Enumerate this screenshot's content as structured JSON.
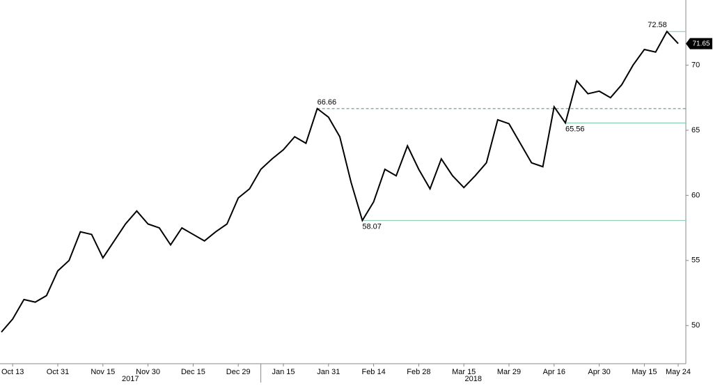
{
  "chart_data": {
    "type": "line",
    "categories": [
      null,
      "Oct 13",
      null,
      null,
      null,
      "Oct 31",
      null,
      null,
      null,
      "Nov 15",
      null,
      null,
      null,
      "Nov 30",
      null,
      null,
      null,
      "Dec 15",
      null,
      null,
      null,
      "Dec 29",
      null,
      null,
      null,
      "Jan 15",
      null,
      null,
      null,
      "Jan 31",
      null,
      null,
      null,
      "Feb 14",
      null,
      null,
      null,
      "Feb 28",
      null,
      null,
      null,
      "Mar 15",
      null,
      null,
      null,
      "Mar 29",
      null,
      null,
      null,
      "Apr 16",
      null,
      null,
      null,
      "Apr 30",
      null,
      null,
      null,
      "May 15",
      null,
      null,
      "May 24"
    ],
    "years": [
      "2017",
      "2018"
    ],
    "series": [
      {
        "color": "#000000",
        "values": [
          49.5,
          50.5,
          52.0,
          51.8,
          52.3,
          54.2,
          55.0,
          57.2,
          57.0,
          55.2,
          56.5,
          57.8,
          58.8,
          57.8,
          57.5,
          56.2,
          57.5,
          57.0,
          56.5,
          57.2,
          57.8,
          59.8,
          60.5,
          62.0,
          62.8,
          63.5,
          64.5,
          64.0,
          66.66,
          66.0,
          64.5,
          61.0,
          58.07,
          59.5,
          62.0,
          61.5,
          63.8,
          62.0,
          60.5,
          62.8,
          61.5,
          60.6,
          61.5,
          62.5,
          65.8,
          65.5,
          64.0,
          62.5,
          62.2,
          66.8,
          65.56,
          68.8,
          67.8,
          68.0,
          67.5,
          68.5,
          70.0,
          71.2,
          71.0,
          72.58,
          71.65
        ]
      }
    ],
    "annotations": [
      72.58,
      66.66,
      65.56,
      58.07
    ],
    "annotation_styles": [
      "solid",
      "dashed",
      "solid",
      "solid"
    ],
    "annotation_color": "#7fc9a8",
    "ylim": [
      47.5,
      75
    ],
    "yticks": [
      50,
      55,
      60,
      65,
      70
    ]
  }
}
